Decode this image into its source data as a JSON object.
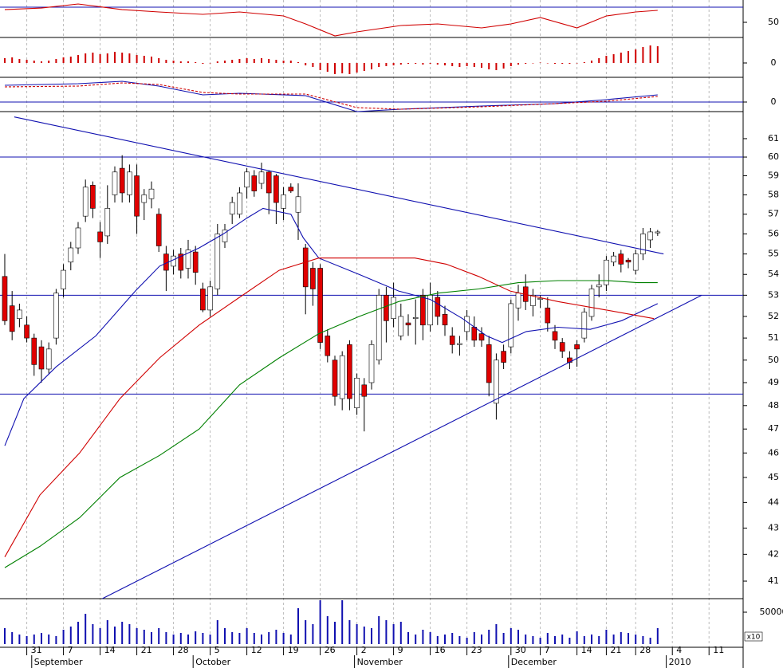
{
  "chart_data": [
    {
      "type": "line",
      "xlim": [
        -0.65,
        100.65
      ],
      "ylim": [
        30,
        79.5
      ],
      "yticks": [
        50
      ],
      "hlines": [
        70
      ],
      "series": [
        {
          "color": "#d00000",
          "x": [
            0,
            5,
            10,
            16,
            21,
            27,
            32,
            38,
            41,
            45,
            48,
            54,
            59,
            65,
            69,
            73,
            78,
            82,
            86,
            89
          ],
          "values": [
            66.8,
            68.9,
            74.2,
            66.8,
            63.7,
            60.5,
            63.7,
            58.4,
            47.9,
            32.1,
            37.4,
            45.8,
            47.9,
            42.6,
            47.9,
            56.3,
            42.6,
            58.4,
            63.7,
            65.8
          ]
        }
      ]
    },
    {
      "type": "bar",
      "xlim": [
        -0.65,
        100.65
      ],
      "ylim": [
        -1.8,
        3.2
      ],
      "yticks": [
        0
      ],
      "color": "#d00000",
      "values": [
        0.6,
        0.7,
        0.5,
        0.4,
        0.3,
        0.2,
        0.3,
        0.5,
        0.7,
        0.8,
        1.0,
        1.2,
        1.3,
        1.1,
        1.2,
        1.4,
        1.3,
        1.2,
        1.0,
        0.9,
        0.8,
        0.6,
        0.4,
        0.3,
        0.2,
        0.2,
        0.1,
        -0.1,
        0,
        0.2,
        0.3,
        0.4,
        0.5,
        0.6,
        0.5,
        0.6,
        0.5,
        0.4,
        0.3,
        0.3,
        0.1,
        -0.3,
        -0.5,
        -0.9,
        -1.1,
        -1.4,
        -1.3,
        -1.4,
        -1.2,
        -1.0,
        -0.8,
        -0.5,
        -0.4,
        -0.3,
        -0.2,
        -0.1,
        -0.1,
        -0.2,
        -0.1,
        -0.2,
        -0.3,
        -0.4,
        -0.5,
        -0.4,
        -0.5,
        -0.6,
        -0.8,
        -0.9,
        -0.7,
        -0.4,
        -0.2,
        -0.1,
        0,
        0.05,
        -0.05,
        -0.1,
        -0.1,
        -0.1,
        0,
        0.1,
        0.3,
        0.6,
        0.9,
        1.1,
        1.3,
        1.5,
        1.7,
        2.0,
        2.2,
        2.1
      ]
    },
    {
      "type": "line",
      "xlim": [
        -0.65,
        100.65
      ],
      "ylim": [
        -0.6,
        1.55
      ],
      "yticks": [
        0
      ],
      "hlines": [
        0
      ],
      "series": [
        {
          "color": "#1010b0",
          "x": [
            0,
            10,
            16,
            21,
            27,
            32,
            41,
            48,
            54,
            65,
            75,
            82,
            89
          ],
          "values": [
            1.05,
            1.15,
            1.3,
            1.0,
            0.45,
            0.55,
            0.4,
            -0.6,
            -0.45,
            -0.25,
            -0.1,
            0.15,
            0.45
          ]
        },
        {
          "color": "#d00000",
          "style": "dashed",
          "x": [
            0,
            10,
            16,
            21,
            27,
            32,
            41,
            48,
            54,
            65,
            75,
            82,
            89
          ],
          "values": [
            0.95,
            1.0,
            1.2,
            1.1,
            0.6,
            0.5,
            0.5,
            -0.35,
            -0.45,
            -0.3,
            -0.1,
            0.05,
            0.35
          ]
        }
      ]
    },
    {
      "type": "candlestick",
      "xlim": [
        -0.65,
        100.65
      ],
      "ylim": [
        40.36,
        62.5
      ],
      "log_scale": true,
      "yticks": [
        41,
        42,
        43,
        44,
        45,
        46,
        47,
        48,
        49,
        50,
        51,
        52,
        53,
        54,
        55,
        56,
        57,
        58,
        59,
        60,
        61
      ],
      "up_color": "#ffffff",
      "down_color": "#e00000",
      "hlines": [
        60,
        53,
        48.5
      ],
      "hline_color": "#1010b0",
      "open": [
        53.9,
        52.5,
        51.9,
        51.6,
        51.0,
        50.6,
        49.6,
        51.0,
        53.3,
        54.6,
        55.3,
        56.9,
        58.5,
        56.1,
        55.9,
        58.0,
        59.4,
        58.0,
        59.0,
        57.6,
        57.8,
        57.0,
        55.0,
        54.4,
        55.0,
        54.3,
        55.1,
        53.3,
        52.3,
        53.3,
        55.6,
        57.0,
        57.0,
        58.4,
        59.0,
        58.6,
        59.2,
        59.0,
        57.3,
        58.4,
        57.1,
        55.3,
        54.3,
        54.3,
        51.1,
        50.0,
        48.3,
        50.7,
        47.9,
        48.9,
        49.0,
        50.0,
        53.0,
        51.9,
        51.1,
        51.7,
        51.9,
        53.0,
        51.6,
        52.9,
        52.1,
        51.1,
        50.7,
        51.3,
        51.5,
        51.2,
        50.7,
        48.1,
        50.4,
        50.6,
        52.4,
        53.4,
        52.5,
        52.8,
        52.4,
        51.3,
        50.8,
        50.1,
        50.7,
        51.0,
        52.0,
        53.4,
        53.5,
        54.6,
        55.0,
        54.7,
        54.2,
        55.0,
        55.7,
        56.05
      ],
      "high": [
        55.0,
        53.2,
        52.6,
        52.0,
        51.2,
        50.9,
        50.8,
        53.3,
        54.5,
        55.6,
        56.6,
        58.8,
        58.7,
        56.6,
        58.5,
        59.5,
        60.1,
        59.6,
        59.6,
        58.3,
        58.7,
        57.3,
        55.4,
        55.2,
        55.3,
        55.7,
        55.4,
        53.6,
        53.7,
        56.5,
        56.5,
        57.9,
        58.4,
        59.4,
        59.3,
        59.7,
        59.3,
        59.1,
        58.4,
        58.6,
        58.6,
        55.5,
        54.6,
        54.5,
        51.4,
        50.2,
        50.4,
        50.9,
        49.4,
        49.2,
        50.9,
        53.3,
        53.4,
        53.6,
        52.6,
        52.1,
        52.8,
        53.3,
        53.6,
        53.2,
        52.5,
        51.5,
        51.1,
        52.3,
        52.0,
        51.5,
        51.1,
        50.3,
        50.7,
        52.8,
        53.5,
        54.0,
        53.3,
        53.0,
        52.9,
        51.6,
        51.0,
        50.4,
        50.9,
        52.4,
        53.5,
        54.0,
        54.9,
        55.1,
        55.2,
        54.8,
        55.2,
        56.3,
        56.3,
        56.2
      ],
      "low": [
        51.6,
        50.9,
        51.5,
        50.8,
        49.3,
        49.0,
        49.4,
        50.7,
        52.9,
        54.2,
        55.0,
        56.6,
        56.8,
        54.8,
        55.5,
        57.6,
        57.6,
        57.6,
        56.0,
        56.7,
        57.3,
        55.1,
        53.2,
        54.0,
        53.8,
        53.8,
        53.5,
        52.2,
        52.0,
        53.0,
        55.3,
        56.5,
        56.8,
        57.8,
        57.9,
        58.3,
        57.0,
        56.5,
        56.7,
        58.1,
        55.7,
        52.1,
        52.5,
        50.5,
        49.9,
        48.0,
        47.8,
        47.8,
        47.6,
        46.9,
        48.7,
        49.8,
        50.8,
        51.5,
        50.9,
        51.1,
        50.7,
        50.9,
        51.3,
        51.6,
        51.1,
        50.3,
        50.2,
        50.9,
        50.6,
        50.6,
        48.4,
        47.4,
        49.6,
        50.3,
        51.8,
        52.3,
        52.0,
        52.4,
        51.3,
        50.5,
        50.1,
        49.6,
        49.7,
        50.8,
        51.8,
        52.9,
        53.2,
        54.4,
        54.1,
        54.3,
        54.0,
        54.7,
        55.3,
        55.9
      ],
      "close": [
        51.8,
        51.3,
        52.3,
        51.0,
        49.8,
        49.6,
        50.5,
        53.1,
        54.2,
        55.3,
        56.3,
        58.4,
        57.3,
        55.6,
        57.3,
        59.2,
        58.1,
        59.2,
        56.9,
        58.0,
        58.3,
        55.4,
        54.2,
        54.9,
        54.2,
        55.2,
        54.1,
        52.3,
        53.4,
        56.0,
        56.2,
        57.6,
        58.1,
        59.2,
        58.2,
        59.2,
        58.1,
        57.6,
        58.0,
        58.2,
        57.9,
        53.4,
        53.3,
        50.8,
        50.2,
        48.4,
        50.2,
        48.3,
        49.2,
        48.4,
        50.7,
        53.0,
        51.8,
        52.9,
        52.0,
        51.6,
        51.95,
        51.6,
        53.0,
        52.0,
        51.6,
        50.7,
        50.75,
        52.0,
        50.9,
        50.9,
        49.0,
        50.0,
        49.9,
        52.6,
        53.1,
        52.7,
        53.0,
        52.85,
        51.7,
        50.9,
        50.4,
        49.9,
        50.5,
        52.2,
        53.3,
        53.5,
        54.7,
        54.9,
        54.5,
        54.6,
        55.0,
        56.0,
        56.1,
        56.1
      ],
      "series": [
        {
          "color": "#1010b0",
          "x": [
            0,
            2.6,
            7,
            12.4,
            17.8,
            21.1,
            26.5,
            29.8,
            33,
            35.2,
            39,
            40.7,
            42.8,
            48.3,
            53.7,
            58,
            62.4,
            65.7,
            67.8,
            71.1,
            75.4,
            79.8,
            84.1,
            89
          ],
          "values": [
            46.3,
            48.3,
            49.7,
            51.1,
            53.2,
            54.4,
            55.3,
            56.0,
            56.8,
            57.3,
            57.0,
            55.8,
            54.8,
            54.0,
            53.2,
            52.8,
            51.9,
            51.1,
            50.8,
            51.3,
            51.5,
            51.4,
            51.8,
            52.6
          ]
        },
        {
          "color": "#d00000",
          "x": [
            0,
            4.8,
            10.2,
            15.7,
            21.1,
            26.5,
            32,
            37.4,
            42.8,
            48.3,
            55.9,
            60.2,
            64.6,
            68.9,
            75.4,
            82,
            88.5
          ],
          "values": [
            41.9,
            44.3,
            46.0,
            48.3,
            50.1,
            51.6,
            52.9,
            54.2,
            54.8,
            54.8,
            54.8,
            54.5,
            53.9,
            53.2,
            52.7,
            52.3,
            51.9
          ]
        },
        {
          "color": "#008000",
          "x": [
            0,
            4.8,
            10.2,
            15.7,
            21.1,
            26.5,
            32,
            37.4,
            42.8,
            48.3,
            53.7,
            59.1,
            64.6,
            70,
            75.4,
            82,
            86.3,
            89
          ],
          "values": [
            41.5,
            42.3,
            43.4,
            45.0,
            45.9,
            47.0,
            48.9,
            50.1,
            51.2,
            52.0,
            52.7,
            53.1,
            53.3,
            53.6,
            53.7,
            53.7,
            53.6,
            53.6
          ]
        },
        {
          "color": "#1010b0",
          "x": [
            1.3,
            89.8
          ],
          "values": [
            62.2,
            55.0
          ]
        },
        {
          "color": "#1010b0",
          "x": [
            13.3,
            95
          ],
          "values": [
            40.36,
            53.0
          ]
        }
      ]
    },
    {
      "type": "bar",
      "xlim": [
        -0.65,
        100.65
      ],
      "ylim": [
        -5000,
        71250
      ],
      "yticks": [
        50000
      ],
      "color": "#1010b0",
      "unit_label": "x10",
      "values": [
        25000,
        18750,
        15000,
        12500,
        15000,
        17500,
        15000,
        12500,
        22500,
        27500,
        35000,
        47500,
        31250,
        25000,
        37500,
        27500,
        35000,
        31250,
        25000,
        22500,
        18750,
        25000,
        18750,
        15000,
        17500,
        15000,
        20000,
        17500,
        15000,
        37500,
        25000,
        18750,
        17500,
        25000,
        17500,
        15000,
        18750,
        22500,
        17500,
        15000,
        56250,
        37500,
        31250,
        68750,
        43750,
        35000,
        68750,
        37500,
        31250,
        27500,
        25000,
        43750,
        37500,
        31250,
        35000,
        18750,
        15000,
        22500,
        18750,
        12500,
        15000,
        17500,
        12500,
        10000,
        18750,
        15000,
        22500,
        31250,
        17500,
        25000,
        22500,
        15000,
        12500,
        10000,
        17500,
        12500,
        15000,
        10000,
        20000,
        12500,
        15000,
        12500,
        22500,
        15000,
        18750,
        17500,
        15000,
        12500,
        10000,
        25000
      ],
      "xticks": [
        {
          "value": 3,
          "label": "31"
        },
        {
          "value": 8,
          "label": "7"
        },
        {
          "value": 13,
          "label": "14"
        },
        {
          "value": 18,
          "label": "21"
        },
        {
          "value": 23,
          "label": "28"
        },
        {
          "value": 28,
          "label": "5"
        },
        {
          "value": 33,
          "label": "12"
        },
        {
          "value": 38,
          "label": "19"
        },
        {
          "value": 43,
          "label": "26"
        },
        {
          "value": 48,
          "label": "2"
        },
        {
          "value": 53,
          "label": "9"
        },
        {
          "value": 58,
          "label": "16"
        },
        {
          "value": 63,
          "label": "23"
        },
        {
          "value": 69,
          "label": "30"
        },
        {
          "value": 73,
          "label": "7"
        },
        {
          "value": 78,
          "label": "14"
        },
        {
          "value": 82,
          "label": "21"
        },
        {
          "value": 86,
          "label": "28"
        },
        {
          "value": 91,
          "label": "4"
        },
        {
          "value": 96,
          "label": "11"
        }
      ],
      "months": [
        {
          "value": 4,
          "label": "September"
        },
        {
          "value": 26,
          "label": "October"
        },
        {
          "value": 48,
          "label": "November"
        },
        {
          "value": 69,
          "label": "December"
        },
        {
          "value": 90.5,
          "label": "2010"
        }
      ]
    }
  ]
}
